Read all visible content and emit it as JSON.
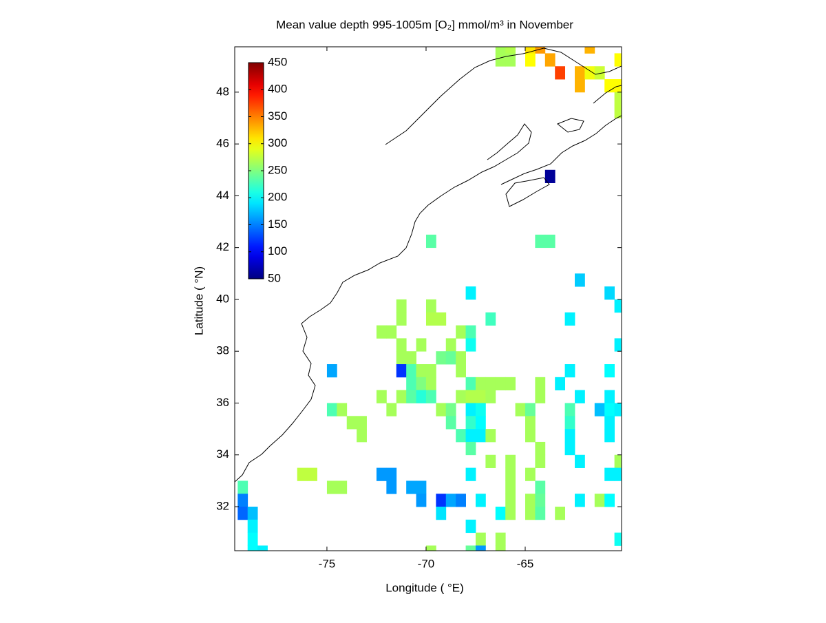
{
  "chart_data": {
    "type": "heatmap",
    "title": "Mean value depth 995-1005m [O₂] mmol/m³ in November",
    "x_label": "Longitude ( °E)",
    "y_label": "Latitude ( °N)",
    "xlim": [
      -79.65,
      -60.14
    ],
    "ylim": [
      30.3,
      49.75
    ],
    "xticks": [
      -75,
      -70,
      -65
    ],
    "yticks": [
      32,
      34,
      36,
      38,
      40,
      42,
      44,
      46,
      48
    ],
    "cell_size": 0.5,
    "colormap": "jet",
    "clim": [
      50,
      450
    ],
    "cticks": [
      50,
      100,
      150,
      200,
      250,
      300,
      350,
      400,
      450
    ],
    "cells": [
      [
        -66.25,
        49.75,
        265
      ],
      [
        -65.75,
        49.75,
        270
      ],
      [
        -64.75,
        49.75,
        310
      ],
      [
        -64.25,
        49.75,
        340
      ],
      [
        -61.75,
        49.75,
        330
      ],
      [
        -66.25,
        49.25,
        265
      ],
      [
        -65.75,
        49.25,
        265
      ],
      [
        -64.75,
        49.25,
        300
      ],
      [
        -63.75,
        49.25,
        335
      ],
      [
        -60.25,
        49.25,
        300
      ],
      [
        -63.25,
        48.75,
        375
      ],
      [
        -62.25,
        48.75,
        330
      ],
      [
        -61.75,
        48.75,
        295
      ],
      [
        -61.25,
        48.75,
        280
      ],
      [
        -62.25,
        48.25,
        330
      ],
      [
        -60.75,
        48.25,
        300
      ],
      [
        -60.25,
        48.25,
        300
      ],
      [
        -60.25,
        47.75,
        275
      ],
      [
        -60.25,
        47.25,
        275
      ],
      [
        -63.75,
        44.75,
        60
      ],
      [
        -69.75,
        42.25,
        235
      ],
      [
        -64.25,
        42.25,
        235
      ],
      [
        -63.75,
        42.25,
        235
      ],
      [
        -62.25,
        40.75,
        180
      ],
      [
        -67.75,
        40.25,
        195
      ],
      [
        -60.75,
        40.25,
        185
      ],
      [
        -71.25,
        39.75,
        265
      ],
      [
        -69.75,
        39.75,
        265
      ],
      [
        -60.25,
        39.75,
        195
      ],
      [
        -71.25,
        39.25,
        265
      ],
      [
        -69.75,
        39.25,
        270
      ],
      [
        -69.25,
        39.25,
        270
      ],
      [
        -66.75,
        39.25,
        225
      ],
      [
        -62.75,
        39.25,
        195
      ],
      [
        -72.25,
        38.75,
        265
      ],
      [
        -71.75,
        38.75,
        265
      ],
      [
        -68.25,
        38.75,
        265
      ],
      [
        -67.75,
        38.75,
        230
      ],
      [
        -71.25,
        38.25,
        265
      ],
      [
        -70.25,
        38.25,
        265
      ],
      [
        -68.75,
        38.25,
        265
      ],
      [
        -67.75,
        38.25,
        205
      ],
      [
        -60.25,
        38.25,
        195
      ],
      [
        -71.25,
        37.75,
        265
      ],
      [
        -70.75,
        37.75,
        265
      ],
      [
        -69.25,
        37.75,
        245
      ],
      [
        -68.75,
        37.75,
        240
      ],
      [
        -68.25,
        37.75,
        265
      ],
      [
        -74.75,
        37.25,
        165
      ],
      [
        -71.25,
        37.25,
        120
      ],
      [
        -70.75,
        37.25,
        230
      ],
      [
        -70.25,
        37.25,
        265
      ],
      [
        -69.75,
        37.25,
        265
      ],
      [
        -68.25,
        37.25,
        265
      ],
      [
        -62.75,
        37.25,
        195
      ],
      [
        -60.75,
        37.25,
        200
      ],
      [
        -70.75,
        36.75,
        230
      ],
      [
        -70.25,
        36.75,
        250
      ],
      [
        -69.75,
        36.75,
        265
      ],
      [
        -67.75,
        36.75,
        230
      ],
      [
        -67.25,
        36.75,
        265
      ],
      [
        -66.75,
        36.75,
        265
      ],
      [
        -66.25,
        36.75,
        265
      ],
      [
        -65.75,
        36.75,
        265
      ],
      [
        -64.25,
        36.75,
        265
      ],
      [
        -63.25,
        36.75,
        195
      ],
      [
        -72.25,
        36.25,
        265
      ],
      [
        -71.25,
        36.25,
        265
      ],
      [
        -70.75,
        36.25,
        235
      ],
      [
        -70.25,
        36.25,
        215
      ],
      [
        -69.75,
        36.25,
        230
      ],
      [
        -68.25,
        36.25,
        265
      ],
      [
        -67.75,
        36.25,
        270
      ],
      [
        -67.25,
        36.25,
        270
      ],
      [
        -66.75,
        36.25,
        265
      ],
      [
        -64.25,
        36.25,
        265
      ],
      [
        -62.25,
        36.25,
        195
      ],
      [
        -60.75,
        36.25,
        195
      ],
      [
        -74.75,
        35.75,
        230
      ],
      [
        -74.25,
        35.75,
        265
      ],
      [
        -71.75,
        35.75,
        265
      ],
      [
        -69.25,
        35.75,
        265
      ],
      [
        -68.75,
        35.75,
        245
      ],
      [
        -67.75,
        35.75,
        195
      ],
      [
        -67.25,
        35.75,
        205
      ],
      [
        -65.25,
        35.75,
        265
      ],
      [
        -64.75,
        35.75,
        240
      ],
      [
        -62.75,
        35.75,
        230
      ],
      [
        -61.25,
        35.75,
        175
      ],
      [
        -60.75,
        35.75,
        200
      ],
      [
        -60.25,
        35.75,
        195
      ],
      [
        -73.75,
        35.25,
        265
      ],
      [
        -73.25,
        35.25,
        265
      ],
      [
        -68.75,
        35.25,
        235
      ],
      [
        -67.75,
        35.25,
        220
      ],
      [
        -67.25,
        35.25,
        200
      ],
      [
        -64.75,
        35.25,
        265
      ],
      [
        -62.75,
        35.25,
        220
      ],
      [
        -60.75,
        35.25,
        195
      ],
      [
        -73.25,
        34.75,
        265
      ],
      [
        -68.25,
        34.75,
        230
      ],
      [
        -67.75,
        34.75,
        195
      ],
      [
        -67.25,
        34.75,
        195
      ],
      [
        -66.75,
        34.75,
        265
      ],
      [
        -64.75,
        34.75,
        265
      ],
      [
        -62.75,
        34.75,
        195
      ],
      [
        -60.75,
        34.75,
        195
      ],
      [
        -67.75,
        34.25,
        235
      ],
      [
        -64.25,
        34.25,
        265
      ],
      [
        -62.75,
        34.25,
        195
      ],
      [
        -66.75,
        33.75,
        265
      ],
      [
        -65.75,
        33.75,
        265
      ],
      [
        -64.25,
        33.75,
        265
      ],
      [
        -62.25,
        33.75,
        195
      ],
      [
        -60.25,
        33.75,
        265
      ],
      [
        -76.25,
        33.25,
        275
      ],
      [
        -75.75,
        33.25,
        275
      ],
      [
        -72.25,
        33.25,
        160
      ],
      [
        -71.75,
        33.25,
        160
      ],
      [
        -67.75,
        33.25,
        195
      ],
      [
        -65.75,
        33.25,
        265
      ],
      [
        -64.75,
        33.25,
        265
      ],
      [
        -60.75,
        33.25,
        195
      ],
      [
        -60.25,
        33.25,
        195
      ],
      [
        -79.25,
        32.75,
        230
      ],
      [
        -74.75,
        32.75,
        265
      ],
      [
        -74.25,
        32.75,
        265
      ],
      [
        -71.75,
        32.75,
        160
      ],
      [
        -70.75,
        32.75,
        165
      ],
      [
        -70.25,
        32.75,
        165
      ],
      [
        -65.75,
        32.75,
        265
      ],
      [
        -64.25,
        32.75,
        235
      ],
      [
        -79.25,
        32.25,
        150
      ],
      [
        -70.25,
        32.25,
        160
      ],
      [
        -69.25,
        32.25,
        120
      ],
      [
        -68.75,
        32.25,
        165
      ],
      [
        -68.25,
        32.25,
        150
      ],
      [
        -67.25,
        32.25,
        195
      ],
      [
        -65.75,
        32.25,
        265
      ],
      [
        -64.75,
        32.25,
        265
      ],
      [
        -64.25,
        32.25,
        240
      ],
      [
        -62.25,
        32.25,
        195
      ],
      [
        -61.25,
        32.25,
        265
      ],
      [
        -60.75,
        32.25,
        200
      ],
      [
        -79.25,
        31.75,
        140
      ],
      [
        -78.75,
        31.75,
        175
      ],
      [
        -69.25,
        31.75,
        190
      ],
      [
        -66.25,
        31.75,
        200
      ],
      [
        -65.75,
        31.75,
        265
      ],
      [
        -64.75,
        31.75,
        265
      ],
      [
        -64.25,
        31.75,
        235
      ],
      [
        -63.25,
        31.75,
        265
      ],
      [
        -78.75,
        31.25,
        195
      ],
      [
        -67.75,
        31.25,
        195
      ],
      [
        -78.75,
        30.75,
        200
      ],
      [
        -67.25,
        30.75,
        265
      ],
      [
        -66.25,
        30.75,
        265
      ],
      [
        -60.25,
        30.75,
        205
      ],
      [
        -78.75,
        30.25,
        200
      ],
      [
        -78.25,
        30.25,
        195
      ],
      [
        -69.75,
        30.25,
        265
      ],
      [
        -67.75,
        30.25,
        240
      ],
      [
        -67.25,
        30.25,
        160
      ],
      [
        -66.25,
        30.25,
        265
      ]
    ]
  }
}
